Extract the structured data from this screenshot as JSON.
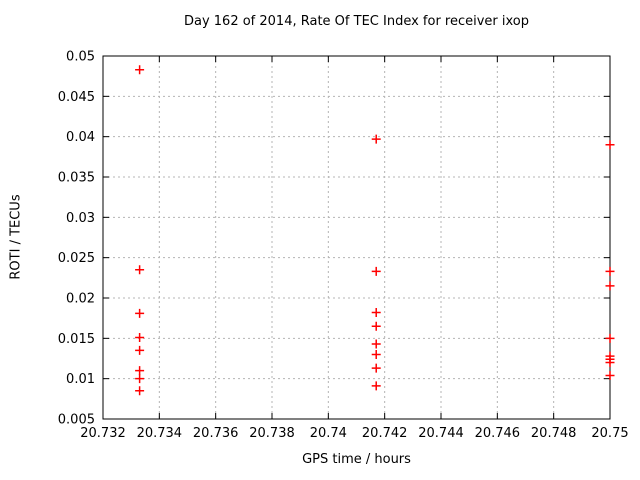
{
  "chart_data": {
    "type": "scatter",
    "title": "Day 162 of 2014, Rate Of TEC Index for receiver ixop",
    "xlabel": "GPS time / hours",
    "ylabel": "ROTI / TECUs",
    "xlim": [
      20.732,
      20.75
    ],
    "ylim": [
      0.005,
      0.05
    ],
    "grid": true,
    "legend": "none",
    "x_ticks": [
      {
        "value": 20.732,
        "label": "20.732"
      },
      {
        "value": 20.734,
        "label": "20.734"
      },
      {
        "value": 20.736,
        "label": "20.736"
      },
      {
        "value": 20.738,
        "label": "20.738"
      },
      {
        "value": 20.74,
        "label": "20.74"
      },
      {
        "value": 20.742,
        "label": "20.742"
      },
      {
        "value": 20.744,
        "label": "20.744"
      },
      {
        "value": 20.746,
        "label": "20.746"
      },
      {
        "value": 20.748,
        "label": "20.748"
      },
      {
        "value": 20.75,
        "label": "20.75"
      }
    ],
    "y_ticks": [
      {
        "value": 0.005,
        "label": "0.005"
      },
      {
        "value": 0.01,
        "label": "0.01"
      },
      {
        "value": 0.015,
        "label": "0.015"
      },
      {
        "value": 0.02,
        "label": "0.02"
      },
      {
        "value": 0.025,
        "label": "0.025"
      },
      {
        "value": 0.03,
        "label": "0.03"
      },
      {
        "value": 0.035,
        "label": "0.035"
      },
      {
        "value": 0.04,
        "label": "0.04"
      },
      {
        "value": 0.045,
        "label": "0.045"
      },
      {
        "value": 0.05,
        "label": "0.05"
      }
    ],
    "series": [
      {
        "name": "ROTI",
        "marker": "plus",
        "color": "#ff0000",
        "points": [
          [
            20.7333,
            0.0483
          ],
          [
            20.7333,
            0.0235
          ],
          [
            20.7333,
            0.0181
          ],
          [
            20.7333,
            0.0151
          ],
          [
            20.7333,
            0.0135
          ],
          [
            20.7333,
            0.011
          ],
          [
            20.7333,
            0.01
          ],
          [
            20.7333,
            0.0085
          ],
          [
            20.7417,
            0.0397
          ],
          [
            20.7417,
            0.0233
          ],
          [
            20.7417,
            0.0182
          ],
          [
            20.7417,
            0.0165
          ],
          [
            20.7417,
            0.0143
          ],
          [
            20.7417,
            0.013
          ],
          [
            20.7417,
            0.0113
          ],
          [
            20.7417,
            0.0091
          ],
          [
            20.75,
            0.039
          ],
          [
            20.75,
            0.0233
          ],
          [
            20.75,
            0.0215
          ],
          [
            20.75,
            0.015
          ],
          [
            20.75,
            0.0128
          ],
          [
            20.75,
            0.0124
          ],
          [
            20.75,
            0.012
          ],
          [
            20.75,
            0.0104
          ]
        ]
      }
    ],
    "colors": {
      "background": "#ffffff",
      "frame": "#000000",
      "grid": "#b4b4b4",
      "text": "#000000"
    }
  }
}
